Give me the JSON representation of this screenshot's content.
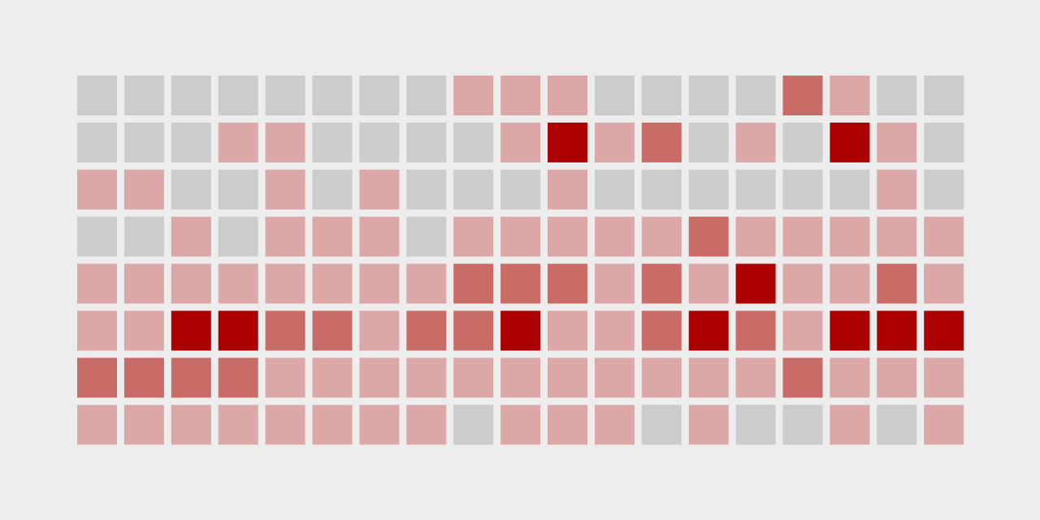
{
  "chart_data": {
    "type": "heatmap",
    "rows": 8,
    "cols": 19,
    "levels": [
      0,
      1,
      2,
      3
    ],
    "colors": {
      "background": "#ededed",
      "level_0": "#cccccc",
      "level_1": "#dba7a7",
      "level_2": "#c96c68",
      "level_3": "#ad0000"
    },
    "grid": [
      [
        0,
        0,
        0,
        0,
        0,
        0,
        0,
        0,
        1,
        1,
        1,
        0,
        0,
        0,
        0,
        2,
        1,
        0,
        0
      ],
      [
        0,
        0,
        0,
        1,
        1,
        0,
        0,
        0,
        0,
        1,
        3,
        1,
        2,
        0,
        1,
        0,
        3,
        1,
        0
      ],
      [
        1,
        1,
        0,
        0,
        1,
        0,
        1,
        0,
        0,
        0,
        1,
        0,
        0,
        0,
        0,
        0,
        0,
        1,
        0
      ],
      [
        0,
        0,
        1,
        0,
        1,
        1,
        1,
        0,
        1,
        1,
        1,
        1,
        1,
        2,
        1,
        1,
        1,
        1,
        1
      ],
      [
        1,
        1,
        1,
        1,
        1,
        1,
        1,
        1,
        2,
        2,
        2,
        1,
        2,
        1,
        3,
        1,
        1,
        2,
        1
      ],
      [
        1,
        1,
        3,
        3,
        2,
        2,
        1,
        2,
        2,
        3,
        1,
        1,
        2,
        3,
        2,
        1,
        3,
        3,
        3
      ],
      [
        2,
        2,
        2,
        2,
        1,
        1,
        1,
        1,
        1,
        1,
        1,
        1,
        1,
        1,
        1,
        2,
        1,
        1,
        1
      ],
      [
        1,
        1,
        1,
        1,
        1,
        1,
        1,
        1,
        0,
        1,
        1,
        1,
        0,
        1,
        0,
        0,
        1,
        0,
        1
      ]
    ]
  }
}
